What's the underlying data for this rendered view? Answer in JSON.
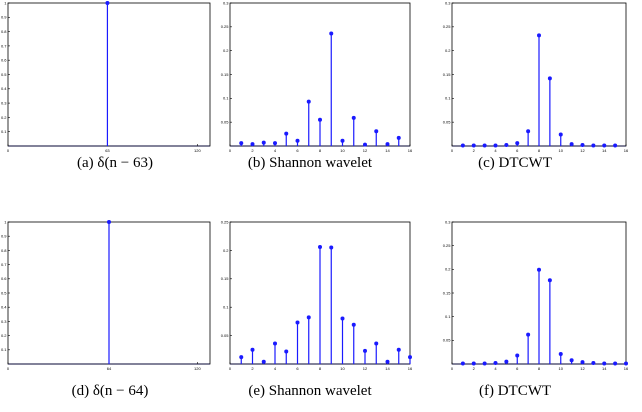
{
  "colors": {
    "stem": "#1a1aff",
    "axes": "#000000"
  },
  "chart_data": [
    {
      "type": "stem",
      "caption": "(a) δ(n − 63)",
      "xlim": [
        0,
        128
      ],
      "ylim": [
        0,
        1
      ],
      "xticks": [
        0,
        63,
        120
      ],
      "xtick_labels": [
        "0",
        "63",
        "120"
      ],
      "yticks": [
        0.1,
        0.2,
        0.3,
        0.4,
        0.5,
        0.6,
        0.7,
        0.8,
        0.9,
        1
      ],
      "ytick_labels": [
        "0.1",
        "0.2",
        "0.3",
        "0.4",
        "0.5",
        "0.6",
        "0.7",
        "0.8",
        "0.9",
        "1"
      ],
      "marker_only_at_nonzero": true,
      "x": [
        63
      ],
      "y": [
        1
      ]
    },
    {
      "type": "stem",
      "caption": "(b) Shannon wavelet",
      "xlim": [
        0,
        16
      ],
      "ylim": [
        0,
        0.3
      ],
      "xticks": [
        0,
        2,
        4,
        6,
        8,
        10,
        12,
        14,
        16
      ],
      "xtick_labels": [
        "0",
        "2",
        "4",
        "6",
        "8",
        "10",
        "12",
        "14",
        "16"
      ],
      "yticks": [
        0.05,
        0.1,
        0.15,
        0.2,
        0.25,
        0.3
      ],
      "ytick_labels": [
        "0.05",
        "0.1",
        "0.15",
        "0.2",
        "0.25",
        "0.3"
      ],
      "x": [
        1,
        2,
        3,
        4,
        5,
        6,
        7,
        8,
        9,
        10,
        11,
        12,
        13,
        14,
        15
      ],
      "y": [
        0.006,
        0.004,
        0.007,
        0.006,
        0.026,
        0.011,
        0.093,
        0.055,
        0.236,
        0.011,
        0.059,
        0.003,
        0.031,
        0.004,
        0.017
      ]
    },
    {
      "type": "stem",
      "caption": "(c) DTCWT",
      "xlim": [
        0,
        16
      ],
      "ylim": [
        0,
        0.3
      ],
      "xticks": [
        0,
        2,
        4,
        6,
        8,
        10,
        12,
        14,
        16
      ],
      "xtick_labels": [
        "0",
        "2",
        "4",
        "6",
        "8",
        "10",
        "12",
        "14",
        "16"
      ],
      "yticks": [
        0.05,
        0.1,
        0.15,
        0.2,
        0.25,
        0.3
      ],
      "ytick_labels": [
        "0.05",
        "0.1",
        "0.15",
        "0.2",
        "0.25",
        "0.3"
      ],
      "x": [
        1,
        2,
        3,
        4,
        5,
        6,
        7,
        8,
        9,
        10,
        11,
        12,
        13,
        14,
        15
      ],
      "y": [
        0.001,
        0.001,
        0.001,
        0.001,
        0.002,
        0.006,
        0.031,
        0.232,
        0.142,
        0.024,
        0.004,
        0.002,
        0.001,
        0.001,
        0.001
      ]
    },
    {
      "type": "stem",
      "caption": "(d) δ(n − 64)",
      "xlim": [
        0,
        128
      ],
      "ylim": [
        0,
        1
      ],
      "xticks": [
        0,
        64,
        120
      ],
      "xtick_labels": [
        "0",
        "64",
        "120"
      ],
      "yticks": [
        0.1,
        0.2,
        0.3,
        0.4,
        0.5,
        0.6,
        0.7,
        0.8,
        0.9,
        1
      ],
      "ytick_labels": [
        "0.1",
        "0.2",
        "0.3",
        "0.4",
        "0.5",
        "0.6",
        "0.7",
        "0.8",
        "0.9",
        "1"
      ],
      "marker_only_at_nonzero": true,
      "x": [
        64
      ],
      "y": [
        1
      ]
    },
    {
      "type": "stem",
      "caption": "(e) Shannon wavelet",
      "xlim": [
        0,
        16
      ],
      "ylim": [
        0,
        0.25
      ],
      "xticks": [
        0,
        2,
        4,
        6,
        8,
        10,
        12,
        14,
        16
      ],
      "xtick_labels": [
        "0",
        "2",
        "4",
        "6",
        "8",
        "10",
        "12",
        "14",
        "16"
      ],
      "yticks": [
        0.05,
        0.1,
        0.15,
        0.2,
        0.25
      ],
      "ytick_labels": [
        "0.05",
        "0.1",
        "0.15",
        "0.2",
        "0.25"
      ],
      "x": [
        1,
        2,
        3,
        4,
        5,
        6,
        7,
        8,
        9,
        10,
        11,
        12,
        13,
        14,
        15,
        16
      ],
      "y": [
        0.012,
        0.025,
        0.004,
        0.036,
        0.022,
        0.073,
        0.082,
        0.206,
        0.205,
        0.08,
        0.069,
        0.023,
        0.036,
        0.004,
        0.025,
        0.012
      ]
    },
    {
      "type": "stem",
      "caption": "(f) DTCWT",
      "xlim": [
        0,
        16
      ],
      "ylim": [
        0,
        0.3
      ],
      "xticks": [
        0,
        2,
        4,
        6,
        8,
        10,
        12,
        14,
        16
      ],
      "xtick_labels": [
        "0",
        "2",
        "4",
        "6",
        "8",
        "10",
        "12",
        "14",
        "16"
      ],
      "yticks": [
        0.05,
        0.1,
        0.15,
        0.2,
        0.25,
        0.3
      ],
      "ytick_labels": [
        "0.05",
        "0.1",
        "0.15",
        "0.2",
        "0.25",
        "0.3"
      ],
      "x": [
        1,
        2,
        3,
        4,
        5,
        6,
        7,
        8,
        9,
        10,
        11,
        12,
        13,
        14,
        15,
        16
      ],
      "y": [
        0.001,
        0.001,
        0.001,
        0.002,
        0.005,
        0.018,
        0.062,
        0.199,
        0.177,
        0.021,
        0.008,
        0.004,
        0.002,
        0.001,
        0.001,
        0.001
      ]
    }
  ]
}
